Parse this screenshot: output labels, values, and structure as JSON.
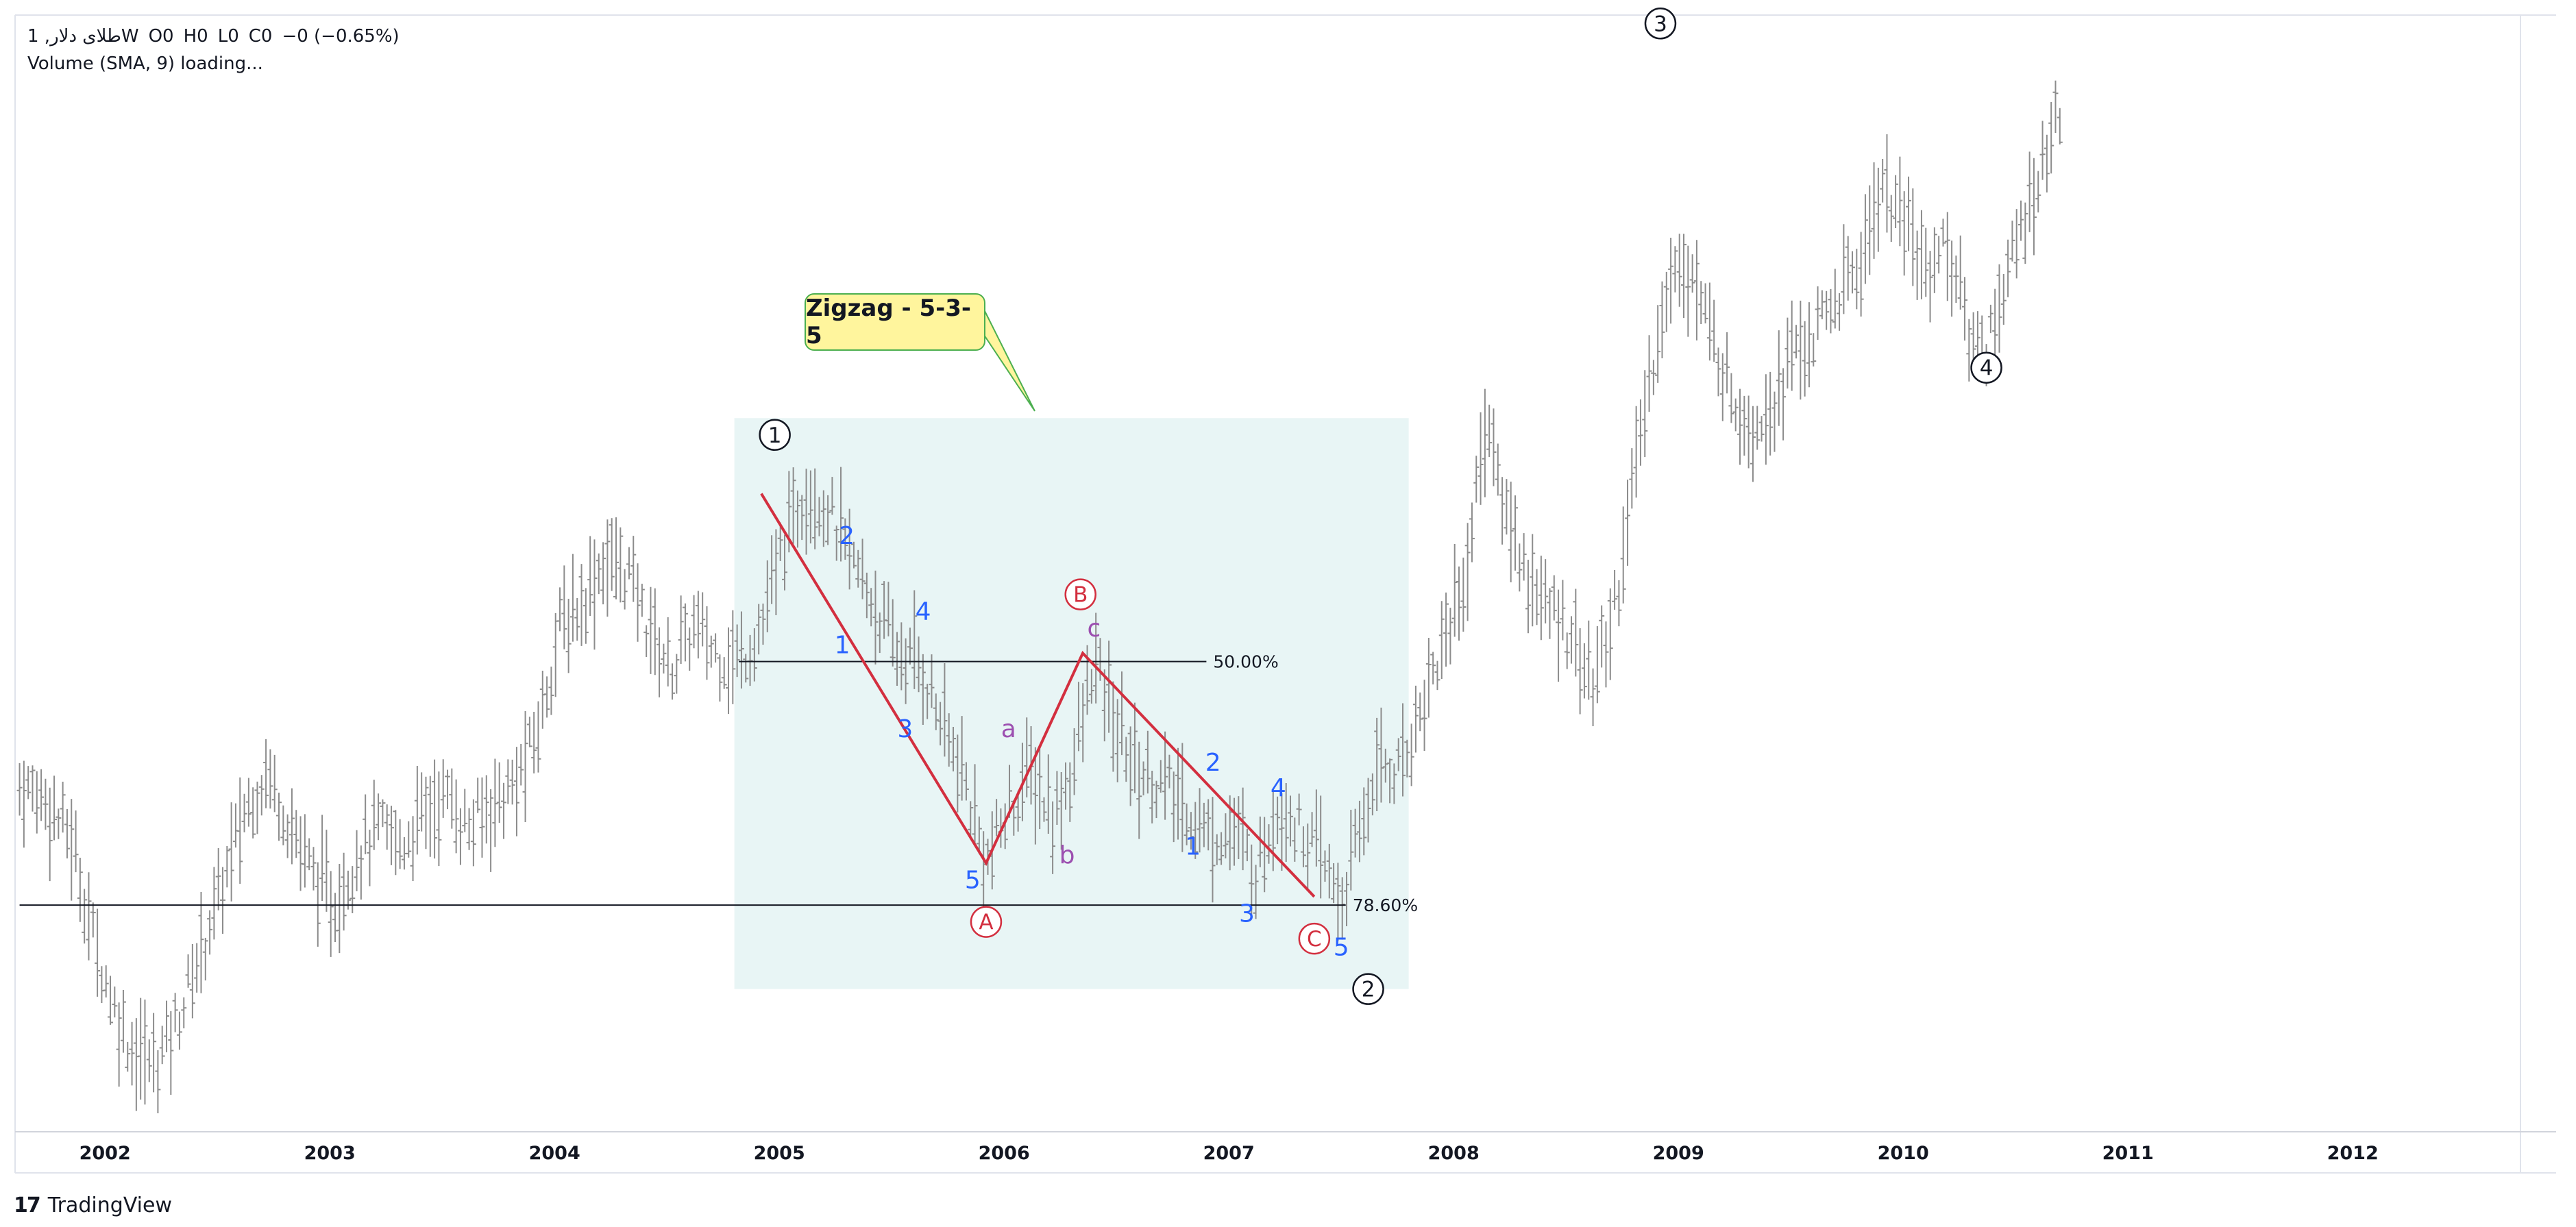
{
  "legend": {
    "symbol": "1 ,طلای دلارW",
    "open": "O0",
    "high": "H0",
    "low": "L0",
    "close": "C0",
    "change": "−0 (−0.65%)",
    "volume": "Volume (SMA, 9) loading..."
  },
  "brand": {
    "logo_text": "17",
    "name": "TradingView"
  },
  "colors": {
    "bars": "#8c8c8c",
    "zigzag": "#d32f3f",
    "sub_wave": "#2962ff",
    "abc_small": "#9c4fb0",
    "box_fill": "#e4f3f3",
    "callout_fill": "#fff59d",
    "callout_border": "#4caf50"
  },
  "chart_data": {
    "type": "ohlc",
    "title": "",
    "x_axis": {
      "ticks": [
        "2002",
        "2003",
        "2004",
        "2005",
        "2006",
        "2007",
        "2008",
        "2009",
        "2010",
        "2011",
        "2012"
      ],
      "range": [
        2001.6,
        2012.7
      ]
    },
    "price_curve": [
      [
        2001.62,
        0.36
      ],
      [
        2001.72,
        0.35
      ],
      [
        2001.85,
        0.3
      ],
      [
        2001.95,
        0.18
      ],
      [
        2002.05,
        0.09
      ],
      [
        2002.12,
        0.05
      ],
      [
        2002.22,
        0.03
      ],
      [
        2002.32,
        0.08
      ],
      [
        2002.42,
        0.16
      ],
      [
        2002.52,
        0.24
      ],
      [
        2002.62,
        0.33
      ],
      [
        2002.72,
        0.38
      ],
      [
        2002.82,
        0.32
      ],
      [
        2002.92,
        0.26
      ],
      [
        2003.02,
        0.22
      ],
      [
        2003.12,
        0.28
      ],
      [
        2003.22,
        0.31
      ],
      [
        2003.32,
        0.29
      ],
      [
        2003.42,
        0.33
      ],
      [
        2003.52,
        0.35
      ],
      [
        2003.62,
        0.31
      ],
      [
        2003.72,
        0.34
      ],
      [
        2003.82,
        0.36
      ],
      [
        2003.92,
        0.42
      ],
      [
        2004.02,
        0.55
      ],
      [
        2004.12,
        0.58
      ],
      [
        2004.22,
        0.63
      ],
      [
        2004.32,
        0.62
      ],
      [
        2004.42,
        0.55
      ],
      [
        2004.52,
        0.5
      ],
      [
        2004.62,
        0.55
      ],
      [
        2004.72,
        0.52
      ],
      [
        2004.82,
        0.51
      ],
      [
        2004.92,
        0.55
      ],
      [
        2005.02,
        0.65
      ],
      [
        2005.12,
        0.72
      ],
      [
        2005.22,
        0.69
      ],
      [
        2005.32,
        0.63
      ],
      [
        2005.42,
        0.58
      ],
      [
        2005.52,
        0.52
      ],
      [
        2005.62,
        0.51
      ],
      [
        2005.72,
        0.44
      ],
      [
        2005.82,
        0.37
      ],
      [
        2005.92,
        0.27
      ],
      [
        2006.02,
        0.33
      ],
      [
        2006.12,
        0.38
      ],
      [
        2006.22,
        0.32
      ],
      [
        2006.32,
        0.4
      ],
      [
        2006.4,
        0.51
      ],
      [
        2006.5,
        0.43
      ],
      [
        2006.6,
        0.38
      ],
      [
        2006.72,
        0.36
      ],
      [
        2006.82,
        0.33
      ],
      [
        2006.92,
        0.3
      ],
      [
        2007.02,
        0.31
      ],
      [
        2007.12,
        0.26
      ],
      [
        2007.22,
        0.34
      ],
      [
        2007.32,
        0.31
      ],
      [
        2007.42,
        0.27
      ],
      [
        2007.5,
        0.22
      ],
      [
        2007.58,
        0.3
      ],
      [
        2007.66,
        0.39
      ],
      [
        2007.76,
        0.38
      ],
      [
        2007.86,
        0.46
      ],
      [
        2007.96,
        0.54
      ],
      [
        2008.06,
        0.62
      ],
      [
        2008.14,
        0.8
      ],
      [
        2008.22,
        0.7
      ],
      [
        2008.32,
        0.62
      ],
      [
        2008.42,
        0.57
      ],
      [
        2008.52,
        0.55
      ],
      [
        2008.62,
        0.48
      ],
      [
        2008.72,
        0.58
      ],
      [
        2008.82,
        0.76
      ],
      [
        2008.92,
        0.92
      ],
      [
        2009.02,
        1.0
      ],
      [
        2009.12,
        0.92
      ],
      [
        2009.22,
        0.84
      ],
      [
        2009.32,
        0.79
      ],
      [
        2009.42,
        0.82
      ],
      [
        2009.52,
        0.88
      ],
      [
        2009.62,
        0.9
      ],
      [
        2009.72,
        0.95
      ],
      [
        2009.82,
        0.99
      ],
      [
        2009.9,
        1.08
      ],
      [
        2010.0,
        1.03
      ],
      [
        2010.1,
        0.98
      ],
      [
        2010.2,
        1.01
      ],
      [
        2010.28,
        0.91
      ],
      [
        2010.36,
        0.88
      ],
      [
        2010.46,
        0.97
      ],
      [
        2010.56,
        1.05
      ],
      [
        2010.66,
        1.14
      ],
      [
        2010.7,
        1.16
      ]
    ],
    "zigzag_points": [
      {
        "x": 2004.92,
        "y": 0.71
      },
      {
        "x": 2005.92,
        "y": 0.27
      },
      {
        "x": 2006.35,
        "y": 0.52
      },
      {
        "x": 2007.38,
        "y": 0.23
      }
    ],
    "fib_levels": [
      {
        "label": "50.00%",
        "value": 0.51,
        "x_start": 2004.82,
        "x_end": 2006.9
      },
      {
        "label": "78.60%",
        "value": 0.22,
        "x_start": 2001.62,
        "x_end": 2007.52
      }
    ],
    "highlight_box": {
      "x_start": 2004.8,
      "x_end": 2007.8,
      "y_low": 0.12,
      "y_high": 0.8
    },
    "annotations": {
      "circled": [
        {
          "text": "1",
          "x": 2004.98,
          "y": 0.78,
          "style": "major"
        },
        {
          "text": "2",
          "x": 2007.62,
          "y": 0.12,
          "style": "major"
        },
        {
          "text": "3",
          "x": 2008.92,
          "y": 1.27,
          "style": "major"
        },
        {
          "text": "4",
          "x": 2010.37,
          "y": 0.86,
          "style": "major"
        },
        {
          "text": "A",
          "x": 2005.92,
          "y": 0.2,
          "style": "red"
        },
        {
          "text": "B",
          "x": 2006.34,
          "y": 0.59,
          "style": "red"
        },
        {
          "text": "C",
          "x": 2007.38,
          "y": 0.18,
          "style": "red"
        }
      ],
      "labels": [
        {
          "text": "2",
          "x": 2005.3,
          "y": 0.65,
          "style": "blue"
        },
        {
          "text": "1",
          "x": 2005.28,
          "y": 0.52,
          "style": "blue"
        },
        {
          "text": "4",
          "x": 2005.64,
          "y": 0.56,
          "style": "blue"
        },
        {
          "text": "3",
          "x": 2005.56,
          "y": 0.42,
          "style": "blue"
        },
        {
          "text": "5",
          "x": 2005.86,
          "y": 0.24,
          "style": "blue"
        },
        {
          "text": "a",
          "x": 2006.02,
          "y": 0.42,
          "style": "purple"
        },
        {
          "text": "b",
          "x": 2006.28,
          "y": 0.27,
          "style": "purple"
        },
        {
          "text": "c",
          "x": 2006.4,
          "y": 0.54,
          "style": "purple"
        },
        {
          "text": "2",
          "x": 2006.93,
          "y": 0.38,
          "style": "blue"
        },
        {
          "text": "1",
          "x": 2006.84,
          "y": 0.28,
          "style": "blue"
        },
        {
          "text": "4",
          "x": 2007.22,
          "y": 0.35,
          "style": "blue"
        },
        {
          "text": "3",
          "x": 2007.08,
          "y": 0.2,
          "style": "blue"
        },
        {
          "text": "5",
          "x": 2007.5,
          "y": 0.16,
          "style": "blue"
        }
      ],
      "callout": "Zigzag - 5-3-5"
    }
  }
}
